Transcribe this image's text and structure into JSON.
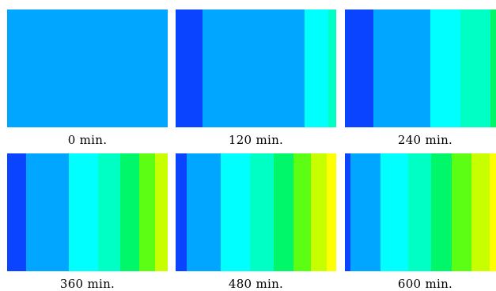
{
  "colors": {
    "blue": "#0a44ff",
    "azure": "#00a6ff",
    "cyan": "#00ffff",
    "aqua": "#00ffc4",
    "green": "#00f76a",
    "lime": "#5cff14",
    "yellow_green": "#c7ff00",
    "yellow": "#ffff00"
  },
  "panels": [
    {
      "caption": "0 min.",
      "bands": [
        {
          "color": "#00a6ff",
          "fraction": 1.0
        }
      ]
    },
    {
      "caption": "120 min.",
      "bands": [
        {
          "color": "#0a44ff",
          "fraction": 0.167
        },
        {
          "color": "#00a6ff",
          "fraction": 0.635
        },
        {
          "color": "#00ffff",
          "fraction": 0.148
        },
        {
          "color": "#00ffc4",
          "fraction": 0.05
        }
      ]
    },
    {
      "caption": "240 min.",
      "bands": [
        {
          "color": "#0a44ff",
          "fraction": 0.177
        },
        {
          "color": "#00a6ff",
          "fraction": 0.355
        },
        {
          "color": "#00ffff",
          "fraction": 0.187
        },
        {
          "color": "#00ffc4",
          "fraction": 0.187
        },
        {
          "color": "#00f76a",
          "fraction": 0.094
        }
      ]
    },
    {
      "caption": "360 min.",
      "bands": [
        {
          "color": "#0a44ff",
          "fraction": 0.118
        },
        {
          "color": "#00a6ff",
          "fraction": 0.266
        },
        {
          "color": "#00ffff",
          "fraction": 0.182
        },
        {
          "color": "#00ffc4",
          "fraction": 0.138
        },
        {
          "color": "#00f76a",
          "fraction": 0.118
        },
        {
          "color": "#5cff14",
          "fraction": 0.099
        },
        {
          "color": "#c7ff00",
          "fraction": 0.079
        }
      ]
    },
    {
      "caption": "480 min.",
      "bands": [
        {
          "color": "#0a44ff",
          "fraction": 0.069
        },
        {
          "color": "#00a6ff",
          "fraction": 0.212
        },
        {
          "color": "#00ffff",
          "fraction": 0.182
        },
        {
          "color": "#00ffc4",
          "fraction": 0.148
        },
        {
          "color": "#00f76a",
          "fraction": 0.123
        },
        {
          "color": "#5cff14",
          "fraction": 0.108
        },
        {
          "color": "#c7ff00",
          "fraction": 0.099
        },
        {
          "color": "#ffff00",
          "fraction": 0.059
        }
      ]
    },
    {
      "caption": "600 min.",
      "bands": [
        {
          "color": "#0a44ff",
          "fraction": 0.034
        },
        {
          "color": "#00a6ff",
          "fraction": 0.187
        },
        {
          "color": "#00ffff",
          "fraction": 0.172
        },
        {
          "color": "#00ffc4",
          "fraction": 0.143
        },
        {
          "color": "#00f76a",
          "fraction": 0.128
        },
        {
          "color": "#5cff14",
          "fraction": 0.123
        },
        {
          "color": "#c7ff00",
          "fraction": 0.113
        },
        {
          "color": "#ffff00",
          "fraction": 0.1
        }
      ]
    }
  ]
}
